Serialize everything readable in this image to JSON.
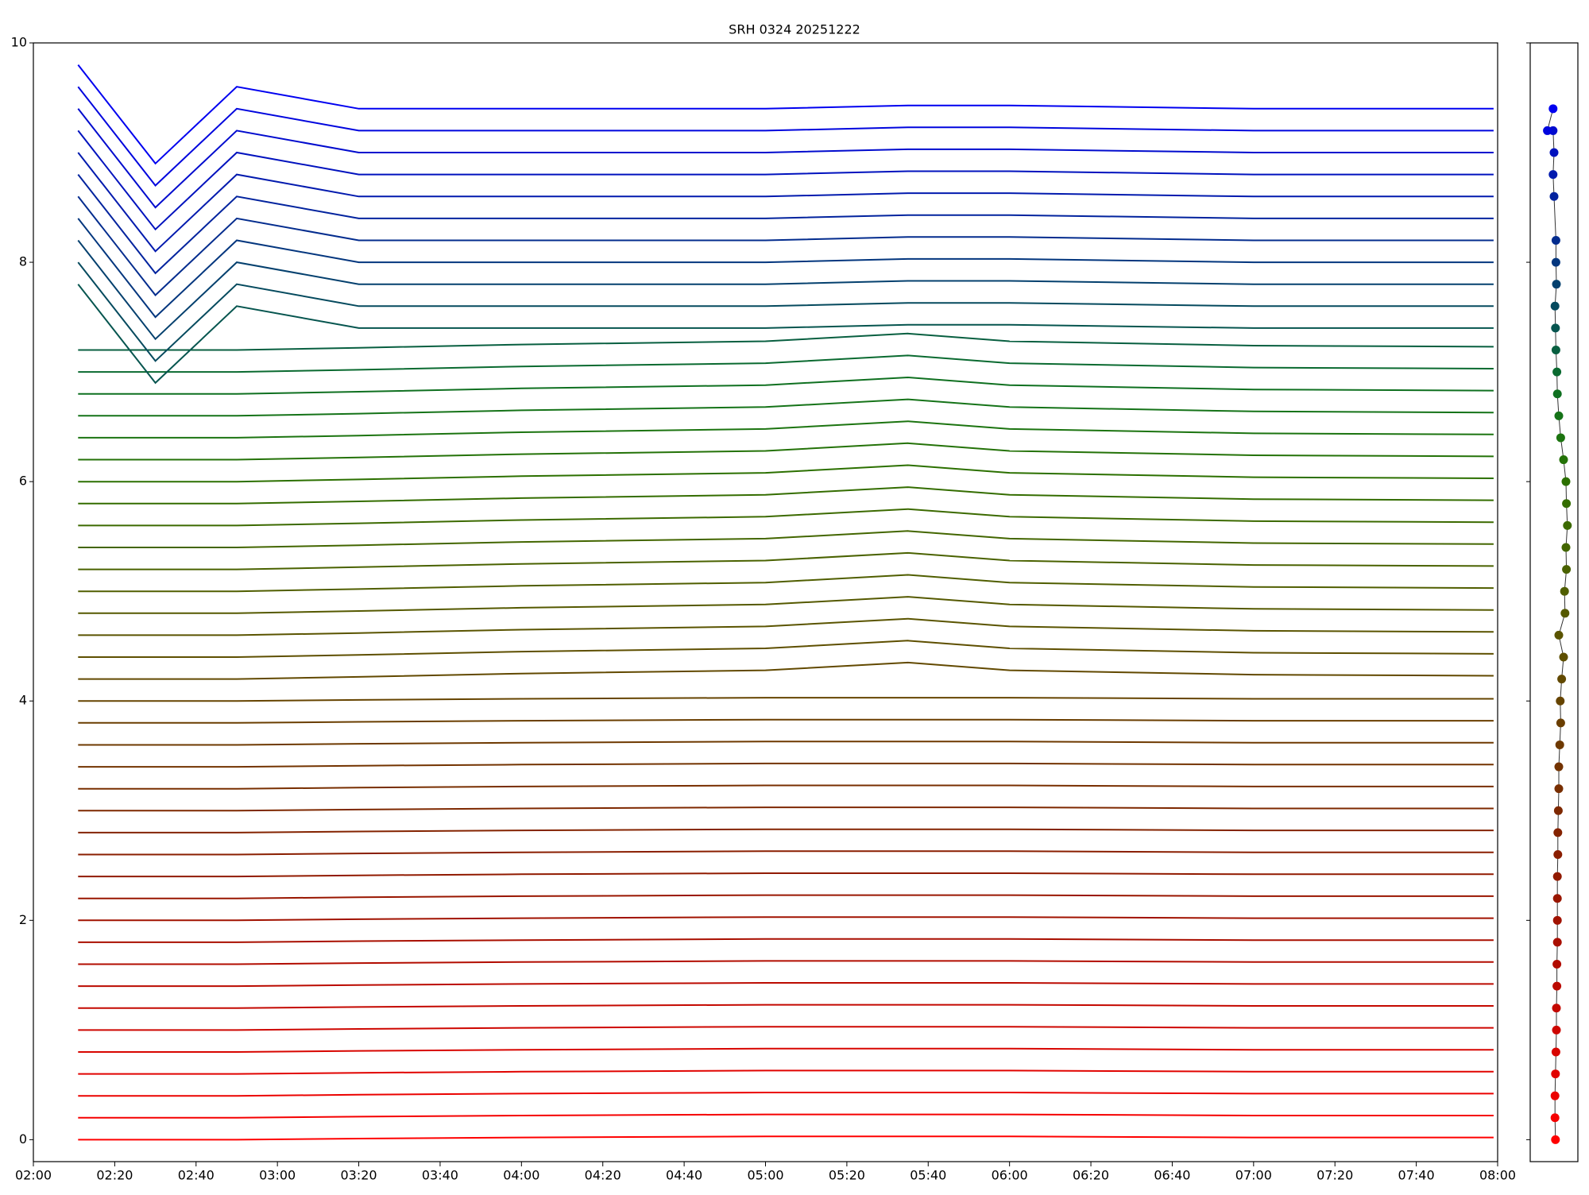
{
  "chart_data": {
    "type": "line",
    "title": "SRH 0324 20251222",
    "x": [
      131,
      150,
      170,
      200,
      240,
      300,
      335,
      360,
      420,
      479
    ],
    "xlim": [
      120,
      480
    ],
    "xticks": [
      {
        "value": 120,
        "label": "02:00"
      },
      {
        "value": 140,
        "label": "02:20"
      },
      {
        "value": 160,
        "label": "02:40"
      },
      {
        "value": 180,
        "label": "03:00"
      },
      {
        "value": 200,
        "label": "03:20"
      },
      {
        "value": 220,
        "label": "03:40"
      },
      {
        "value": 240,
        "label": "04:00"
      },
      {
        "value": 260,
        "label": "04:20"
      },
      {
        "value": 280,
        "label": "04:40"
      },
      {
        "value": 300,
        "label": "05:00"
      },
      {
        "value": 320,
        "label": "05:20"
      },
      {
        "value": 340,
        "label": "05:40"
      },
      {
        "value": 360,
        "label": "06:00"
      },
      {
        "value": 380,
        "label": "06:20"
      },
      {
        "value": 400,
        "label": "06:40"
      },
      {
        "value": 420,
        "label": "07:00"
      },
      {
        "value": 440,
        "label": "07:20"
      },
      {
        "value": 460,
        "label": "07:40"
      },
      {
        "value": 480,
        "label": "08:00"
      }
    ],
    "ylim": [
      -0.2,
      10
    ],
    "yticks": [
      0,
      2,
      4,
      6,
      8,
      10
    ],
    "series": [
      {
        "color": "#ff0000",
        "values": [
          0,
          0,
          0,
          0.01,
          0.02,
          0.03,
          0.03,
          0.03,
          0.02,
          0.02
        ]
      },
      {
        "color": "#f50000",
        "values": [
          0.2,
          0.2,
          0.2,
          0.21,
          0.22,
          0.23,
          0.23,
          0.23,
          0.22,
          0.22
        ]
      },
      {
        "color": "#eb0200",
        "values": [
          0.4,
          0.4,
          0.4,
          0.41,
          0.42,
          0.43,
          0.43,
          0.43,
          0.42,
          0.42
        ]
      },
      {
        "color": "#e10300",
        "values": [
          0.6,
          0.6,
          0.6,
          0.61,
          0.62,
          0.63,
          0.63,
          0.63,
          0.62,
          0.62
        ]
      },
      {
        "color": "#d80500",
        "values": [
          0.8,
          0.8,
          0.8,
          0.81,
          0.82,
          0.83,
          0.83,
          0.83,
          0.82,
          0.82
        ]
      },
      {
        "color": "#ce0600",
        "values": [
          1,
          1,
          1,
          1.01,
          1.02,
          1.03,
          1.03,
          1.03,
          1.02,
          1.02
        ]
      },
      {
        "color": "#c40800",
        "values": [
          1.2,
          1.2,
          1.2,
          1.21,
          1.22,
          1.23,
          1.23,
          1.23,
          1.22,
          1.22
        ]
      },
      {
        "color": "#bb0a00",
        "values": [
          1.4,
          1.4,
          1.4,
          1.41,
          1.42,
          1.43,
          1.43,
          1.43,
          1.42,
          1.42
        ]
      },
      {
        "color": "#b20c00",
        "values": [
          1.6,
          1.6,
          1.6,
          1.61,
          1.62,
          1.63,
          1.63,
          1.63,
          1.62,
          1.62
        ]
      },
      {
        "color": "#a90f00",
        "values": [
          1.8,
          1.8,
          1.8,
          1.81,
          1.82,
          1.83,
          1.83,
          1.83,
          1.82,
          1.82
        ]
      },
      {
        "color": "#a11200",
        "values": [
          2,
          2,
          2,
          2.01,
          2.02,
          2.03,
          2.03,
          2.03,
          2.02,
          2.02
        ]
      },
      {
        "color": "#991600",
        "values": [
          2.2,
          2.2,
          2.2,
          2.21,
          2.22,
          2.23,
          2.23,
          2.23,
          2.22,
          2.22
        ]
      },
      {
        "color": "#911a00",
        "values": [
          2.4,
          2.4,
          2.4,
          2.41,
          2.42,
          2.43,
          2.43,
          2.43,
          2.42,
          2.42
        ]
      },
      {
        "color": "#8a1e00",
        "values": [
          2.6,
          2.6,
          2.6,
          2.61,
          2.62,
          2.63,
          2.63,
          2.63,
          2.62,
          2.62
        ]
      },
      {
        "color": "#842300",
        "values": [
          2.8,
          2.8,
          2.8,
          2.81,
          2.82,
          2.83,
          2.83,
          2.83,
          2.82,
          2.82
        ]
      },
      {
        "color": "#7e2800",
        "values": [
          3,
          3,
          3,
          3.01,
          3.02,
          3.03,
          3.03,
          3.03,
          3.02,
          3.02
        ]
      },
      {
        "color": "#782e00",
        "values": [
          3.2,
          3.2,
          3.2,
          3.21,
          3.22,
          3.23,
          3.23,
          3.23,
          3.22,
          3.22
        ]
      },
      {
        "color": "#733300",
        "values": [
          3.4,
          3.4,
          3.4,
          3.41,
          3.42,
          3.43,
          3.43,
          3.43,
          3.42,
          3.42
        ]
      },
      {
        "color": "#6e3900",
        "values": [
          3.6,
          3.6,
          3.6,
          3.61,
          3.62,
          3.63,
          3.63,
          3.63,
          3.62,
          3.62
        ]
      },
      {
        "color": "#6a3e00",
        "values": [
          3.8,
          3.8,
          3.8,
          3.81,
          3.82,
          3.83,
          3.83,
          3.83,
          3.82,
          3.82
        ]
      },
      {
        "color": "#664400",
        "values": [
          4,
          4,
          4,
          4.01,
          4.02,
          4.03,
          4.03,
          4.03,
          4.02,
          4.02
        ]
      },
      {
        "color": "#624900",
        "values": [
          4.2,
          4.2,
          4.2,
          4.22,
          4.25,
          4.28,
          4.35,
          4.28,
          4.24,
          4.23
        ]
      },
      {
        "color": "#5e4f00",
        "values": [
          4.4,
          4.4,
          4.4,
          4.42,
          4.45,
          4.48,
          4.55,
          4.48,
          4.44,
          4.43
        ]
      },
      {
        "color": "#5a5400",
        "values": [
          4.6,
          4.6,
          4.6,
          4.62,
          4.65,
          4.68,
          4.75,
          4.68,
          4.64,
          4.63
        ]
      },
      {
        "color": "#555900",
        "values": [
          4.8,
          4.8,
          4.8,
          4.82,
          4.85,
          4.88,
          4.95,
          4.88,
          4.84,
          4.83
        ]
      },
      {
        "color": "#505e00",
        "values": [
          5,
          5,
          5,
          5.02,
          5.05,
          5.08,
          5.15,
          5.08,
          5.04,
          5.03
        ]
      },
      {
        "color": "#4a6200",
        "values": [
          5.2,
          5.2,
          5.2,
          5.22,
          5.25,
          5.28,
          5.35,
          5.28,
          5.24,
          5.23
        ]
      },
      {
        "color": "#436600",
        "values": [
          5.4,
          5.4,
          5.4,
          5.42,
          5.45,
          5.48,
          5.55,
          5.48,
          5.44,
          5.43
        ]
      },
      {
        "color": "#3c6a00",
        "values": [
          5.6,
          5.6,
          5.6,
          5.62,
          5.65,
          5.68,
          5.75,
          5.68,
          5.64,
          5.63
        ]
      },
      {
        "color": "#346d00",
        "values": [
          5.8,
          5.8,
          5.8,
          5.82,
          5.85,
          5.88,
          5.95,
          5.88,
          5.84,
          5.83
        ]
      },
      {
        "color": "#2c7000",
        "values": [
          6,
          6,
          6,
          6.02,
          6.05,
          6.08,
          6.15,
          6.08,
          6.04,
          6.03
        ]
      },
      {
        "color": "#247208",
        "values": [
          6.2,
          6.2,
          6.2,
          6.22,
          6.25,
          6.28,
          6.35,
          6.28,
          6.24,
          6.23
        ]
      },
      {
        "color": "#1c7410",
        "values": [
          6.4,
          6.4,
          6.4,
          6.42,
          6.45,
          6.48,
          6.55,
          6.48,
          6.44,
          6.43
        ]
      },
      {
        "color": "#157318",
        "values": [
          6.6,
          6.6,
          6.6,
          6.62,
          6.65,
          6.68,
          6.75,
          6.68,
          6.64,
          6.63
        ]
      },
      {
        "color": "#0f7020",
        "values": [
          6.8,
          6.8,
          6.8,
          6.82,
          6.85,
          6.88,
          6.95,
          6.88,
          6.84,
          6.83
        ]
      },
      {
        "color": "#0a6a30",
        "values": [
          7,
          7,
          7,
          7.02,
          7.05,
          7.08,
          7.15,
          7.08,
          7.04,
          7.03
        ]
      },
      {
        "color": "#085f40",
        "values": [
          7.2,
          7.2,
          7.2,
          7.22,
          7.25,
          7.28,
          7.35,
          7.28,
          7.24,
          7.23
        ]
      },
      {
        "color": "#06554f",
        "values": [
          7.8,
          6.9,
          7.6,
          7.4,
          7.4,
          7.4,
          7.43,
          7.43,
          7.4,
          7.4
        ]
      },
      {
        "color": "#054a5e",
        "values": [
          8,
          7.1,
          7.8,
          7.6,
          7.6,
          7.6,
          7.63,
          7.63,
          7.6,
          7.6
        ]
      },
      {
        "color": "#04406e",
        "values": [
          8.2,
          7.3,
          8,
          7.8,
          7.8,
          7.8,
          7.83,
          7.83,
          7.8,
          7.8
        ]
      },
      {
        "color": "#03367e",
        "values": [
          8.4,
          7.5,
          8.2,
          8,
          8,
          8,
          8.03,
          8.03,
          8,
          8
        ]
      },
      {
        "color": "#032c8e",
        "values": [
          8.6,
          7.7,
          8.4,
          8.2,
          8.2,
          8.2,
          8.23,
          8.23,
          8.2,
          8.2
        ]
      },
      {
        "color": "#02239e",
        "values": [
          8.8,
          7.9,
          8.6,
          8.4,
          8.4,
          8.4,
          8.43,
          8.43,
          8.4,
          8.4
        ]
      },
      {
        "color": "#021aae",
        "values": [
          9,
          8.1,
          8.8,
          8.6,
          8.6,
          8.6,
          8.63,
          8.63,
          8.6,
          8.6
        ]
      },
      {
        "color": "#0112be",
        "values": [
          9.2,
          8.3,
          9,
          8.8,
          8.8,
          8.8,
          8.83,
          8.83,
          8.8,
          8.8
        ]
      },
      {
        "color": "#010bce",
        "values": [
          9.4,
          8.5,
          9.2,
          9,
          9,
          9,
          9.03,
          9.03,
          9,
          9
        ]
      },
      {
        "color": "#0005de",
        "values": [
          9.6,
          8.7,
          9.4,
          9.2,
          9.2,
          9.2,
          9.23,
          9.23,
          9.2,
          9.2
        ]
      },
      {
        "color": "#0000f0",
        "values": [
          9.8,
          8.9,
          9.6,
          9.4,
          9.4,
          9.4,
          9.43,
          9.43,
          9.4,
          9.4
        ]
      }
    ],
    "panel": {
      "xlim": [
        0,
        1
      ],
      "x": [
        0.53,
        0.52,
        0.52,
        0.53,
        0.54,
        0.55,
        0.55,
        0.56,
        0.56,
        0.57,
        0.57,
        0.57,
        0.57,
        0.58,
        0.58,
        0.59,
        0.6,
        0.6,
        0.62,
        0.64,
        0.63,
        0.66,
        0.7,
        0.6,
        0.73,
        0.72,
        0.76,
        0.75,
        0.78,
        0.76,
        0.75,
        0.7,
        0.64,
        0.6,
        0.57,
        0.56,
        0.54,
        0.53,
        0.52,
        0.55,
        0.54,
        0.54,
        0.5,
        0.48,
        0.5,
        0.48,
        0.36,
        0.48
      ],
      "y": [
        0,
        0.2,
        0.4,
        0.6,
        0.8,
        1,
        1.2,
        1.4,
        1.6,
        1.8,
        2,
        2.2,
        2.4,
        2.6,
        2.8,
        3,
        3.2,
        3.4,
        3.6,
        3.8,
        4,
        4.2,
        4.4,
        4.6,
        4.8,
        5,
        5.2,
        5.4,
        5.6,
        5.8,
        6,
        6.2,
        6.4,
        6.6,
        6.8,
        7,
        7.2,
        7.4,
        7.6,
        7.8,
        8,
        8.2,
        8.6,
        8.8,
        9,
        9.2,
        9.2,
        9.4
      ]
    }
  }
}
